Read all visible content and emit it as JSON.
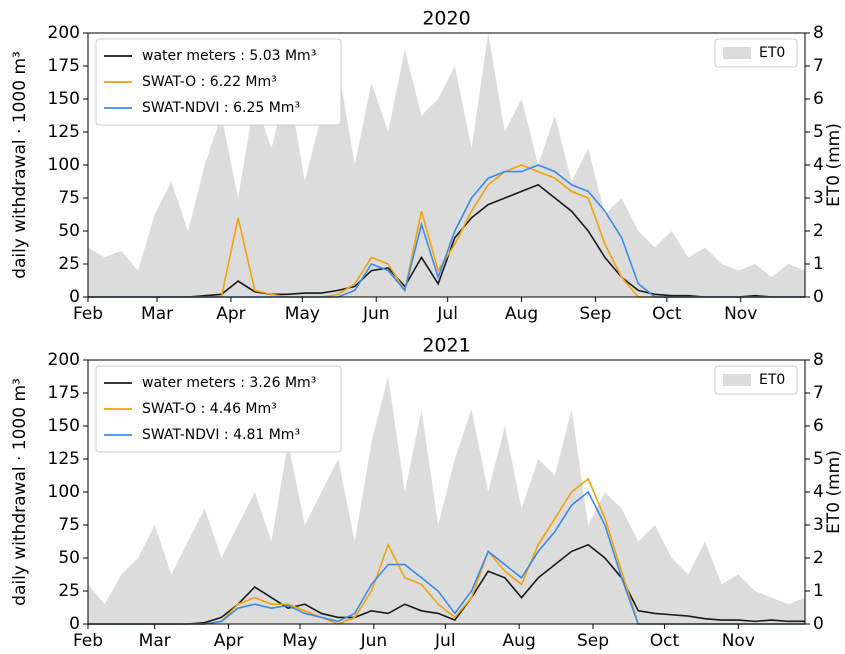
{
  "chart_data": [
    {
      "type": "line",
      "title": "2020",
      "ylabel": "daily withdrawal · 1000 m³",
      "y2label": "ET0 (mm)",
      "legend": "upper left",
      "y2_legend": "upper right",
      "x": [
        0,
        7,
        14,
        21,
        28,
        35,
        42,
        49,
        56,
        63,
        70,
        77,
        84,
        91,
        98,
        105,
        112,
        119,
        126,
        133,
        140,
        147,
        154,
        161,
        168,
        175,
        182,
        189,
        196,
        203,
        210,
        217,
        224,
        231,
        238,
        245,
        252,
        259,
        266,
        273,
        280,
        287,
        294,
        301
      ],
      "xlim": [
        0,
        301
      ],
      "xticks": [
        {
          "value": 0,
          "label": "Feb"
        },
        {
          "value": 29,
          "label": "Mar"
        },
        {
          "value": 60,
          "label": "Apr"
        },
        {
          "value": 90,
          "label": "May"
        },
        {
          "value": 121,
          "label": "Jun"
        },
        {
          "value": 151,
          "label": "Jul"
        },
        {
          "value": 182,
          "label": "Aug"
        },
        {
          "value": 213,
          "label": "Sep"
        },
        {
          "value": 243,
          "label": "Oct"
        },
        {
          "value": 274,
          "label": "Nov"
        }
      ],
      "ylim": [
        0,
        200
      ],
      "yticks": [
        0,
        25,
        50,
        75,
        100,
        125,
        150,
        175,
        200
      ],
      "y2lim": [
        0,
        8
      ],
      "y2ticks": [
        0,
        1,
        2,
        3,
        4,
        5,
        6,
        7,
        8
      ],
      "series": [
        {
          "name": "ET0",
          "type": "area",
          "axis": "y2",
          "color": "#dcdcdc",
          "values": [
            1.5,
            1.2,
            1.4,
            0.8,
            2.5,
            3.5,
            2.0,
            4.0,
            5.5,
            3.0,
            6.0,
            4.5,
            6.5,
            3.5,
            5.5,
            7.0,
            4.0,
            6.5,
            5.0,
            7.5,
            5.5,
            6.0,
            7.0,
            4.5,
            8.0,
            5.0,
            6.0,
            4.0,
            5.5,
            3.5,
            4.5,
            2.5,
            3.0,
            2.0,
            1.5,
            2.0,
            1.2,
            1.5,
            1.0,
            0.8,
            1.0,
            0.6,
            1.0,
            0.8
          ]
        },
        {
          "name": "water meters : 5.03 Mm³",
          "type": "line",
          "color": "#1a1a1a",
          "values": [
            0,
            0,
            0,
            0,
            0,
            0,
            0,
            1,
            2,
            12,
            4,
            2,
            2,
            3,
            3,
            5,
            8,
            20,
            22,
            8,
            30,
            10,
            45,
            60,
            70,
            75,
            80,
            85,
            75,
            65,
            50,
            30,
            15,
            5,
            2,
            1,
            1,
            0,
            0,
            0,
            1,
            0,
            0,
            0
          ]
        },
        {
          "name": "SWAT-O : 6.22 Mm³",
          "type": "line",
          "color": "#f0a30a",
          "values": [
            0,
            0,
            0,
            0,
            0,
            0,
            0,
            0,
            0,
            60,
            5,
            2,
            0,
            0,
            0,
            2,
            10,
            30,
            25,
            5,
            65,
            20,
            40,
            65,
            85,
            95,
            100,
            95,
            90,
            80,
            75,
            40,
            15,
            0,
            0,
            0,
            0,
            0,
            0,
            0,
            0,
            0,
            0,
            0
          ]
        },
        {
          "name": "SWAT-NDVI : 6.25 Mm³",
          "type": "line",
          "color": "#3b8beb",
          "values": [
            0,
            0,
            0,
            0,
            0,
            0,
            0,
            0,
            0,
            0,
            0,
            0,
            0,
            0,
            0,
            0,
            5,
            25,
            20,
            5,
            55,
            15,
            50,
            75,
            90,
            95,
            95,
            100,
            95,
            85,
            80,
            65,
            45,
            10,
            0,
            0,
            0,
            0,
            0,
            0,
            0,
            0,
            0,
            0
          ]
        }
      ]
    },
    {
      "type": "line",
      "title": "2021",
      "ylabel": "daily withdrawal · 1000 m³",
      "y2label": "ET0 (mm)",
      "legend": "upper left",
      "y2_legend": "upper right",
      "x": [
        0,
        7,
        14,
        21,
        28,
        35,
        42,
        49,
        56,
        63,
        70,
        77,
        84,
        91,
        98,
        105,
        112,
        119,
        126,
        133,
        140,
        147,
        154,
        161,
        168,
        175,
        182,
        189,
        196,
        203,
        210,
        217,
        224,
        231,
        238,
        245,
        252,
        259,
        266,
        273,
        280,
        287,
        294,
        301
      ],
      "xlim": [
        0,
        301
      ],
      "xticks": [
        {
          "value": 0,
          "label": "Feb"
        },
        {
          "value": 28,
          "label": "Mar"
        },
        {
          "value": 59,
          "label": "Apr"
        },
        {
          "value": 89,
          "label": "May"
        },
        {
          "value": 120,
          "label": "Jun"
        },
        {
          "value": 150,
          "label": "Jul"
        },
        {
          "value": 181,
          "label": "Aug"
        },
        {
          "value": 212,
          "label": "Sep"
        },
        {
          "value": 242,
          "label": "Oct"
        },
        {
          "value": 273,
          "label": "Nov"
        }
      ],
      "ylim": [
        0,
        200
      ],
      "yticks": [
        0,
        25,
        50,
        75,
        100,
        125,
        150,
        175,
        200
      ],
      "y2lim": [
        0,
        8
      ],
      "y2ticks": [
        0,
        1,
        2,
        3,
        4,
        5,
        6,
        7,
        8
      ],
      "series": [
        {
          "name": "ET0",
          "type": "area",
          "axis": "y2",
          "color": "#dcdcdc",
          "values": [
            1.2,
            0.6,
            1.5,
            2.0,
            3.0,
            1.5,
            2.5,
            3.5,
            2.0,
            3.0,
            4.0,
            2.5,
            5.5,
            3.0,
            4.0,
            5.0,
            2.5,
            5.5,
            7.5,
            4.0,
            6.5,
            3.0,
            5.0,
            6.5,
            4.0,
            6.0,
            3.5,
            5.0,
            4.5,
            6.5,
            3.0,
            4.0,
            3.5,
            2.5,
            3.0,
            2.0,
            1.5,
            2.5,
            1.2,
            1.5,
            1.0,
            0.8,
            0.6,
            0.8
          ]
        },
        {
          "name": "water meters : 3.26 Mm³",
          "type": "line",
          "color": "#1a1a1a",
          "values": [
            0,
            0,
            0,
            0,
            0,
            0,
            0,
            1,
            5,
            15,
            28,
            20,
            12,
            15,
            8,
            5,
            5,
            10,
            8,
            15,
            10,
            8,
            3,
            20,
            40,
            35,
            20,
            35,
            45,
            55,
            60,
            50,
            35,
            10,
            8,
            7,
            6,
            4,
            3,
            3,
            2,
            3,
            2,
            2
          ]
        },
        {
          "name": "SWAT-O : 4.46 Mm³",
          "type": "line",
          "color": "#f0a30a",
          "values": [
            0,
            0,
            0,
            0,
            0,
            0,
            0,
            0,
            2,
            15,
            20,
            15,
            15,
            10,
            5,
            0,
            5,
            25,
            60,
            35,
            30,
            15,
            5,
            20,
            55,
            40,
            30,
            60,
            80,
            100,
            110,
            80,
            40,
            0,
            0,
            0,
            0,
            0,
            0,
            0,
            0,
            0,
            0,
            0
          ]
        },
        {
          "name": "SWAT-NDVI : 4.81 Mm³",
          "type": "line",
          "color": "#3b8beb",
          "values": [
            0,
            0,
            0,
            0,
            0,
            0,
            0,
            0,
            2,
            12,
            15,
            12,
            14,
            8,
            5,
            2,
            8,
            30,
            45,
            45,
            35,
            25,
            8,
            25,
            55,
            45,
            35,
            55,
            70,
            90,
            100,
            75,
            35,
            0,
            0,
            0,
            0,
            0,
            0,
            0,
            0,
            0,
            0,
            0
          ]
        }
      ]
    }
  ]
}
